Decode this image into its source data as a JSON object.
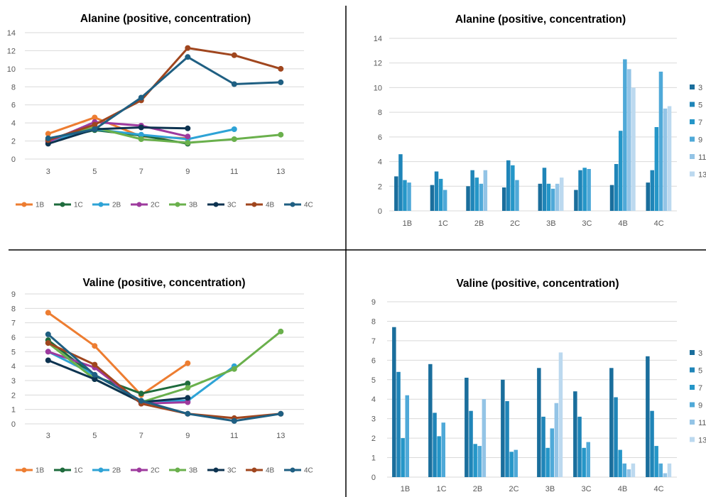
{
  "chart_data": [
    {
      "type": "line",
      "title": "Alanine (positive, concentration)",
      "x": [
        3,
        5,
        7,
        9,
        11,
        13
      ],
      "ylim": [
        0,
        14
      ],
      "yticks": [
        "0",
        "2",
        "4",
        "6",
        "8",
        "10",
        "12",
        "14"
      ],
      "grid": true,
      "legend_position": "bottom",
      "series": [
        {
          "name": "1B",
          "color": "#ED7D31",
          "values": [
            2.8,
            4.6,
            2.5,
            2.3,
            null,
            null
          ]
        },
        {
          "name": "1C",
          "color": "#1E6B3C",
          "values": [
            2.1,
            3.2,
            2.6,
            1.7,
            null,
            null
          ]
        },
        {
          "name": "2B",
          "color": "#2EA3D6",
          "values": [
            2.0,
            3.3,
            2.7,
            2.2,
            3.3,
            null
          ]
        },
        {
          "name": "2C",
          "color": "#9E3A9E",
          "values": [
            1.9,
            4.1,
            3.7,
            2.5,
            null,
            null
          ]
        },
        {
          "name": "3B",
          "color": "#6AB04C",
          "values": [
            2.2,
            3.5,
            2.2,
            1.8,
            2.2,
            2.7
          ]
        },
        {
          "name": "3C",
          "color": "#0D3350",
          "values": [
            1.7,
            3.3,
            3.5,
            3.4,
            null,
            null
          ]
        },
        {
          "name": "4B",
          "color": "#A0461E",
          "values": [
            2.1,
            3.8,
            6.5,
            12.3,
            11.5,
            10.0
          ]
        },
        {
          "name": "4C",
          "color": "#1F5F82",
          "values": [
            2.3,
            3.3,
            6.8,
            11.3,
            8.3,
            8.5
          ]
        }
      ]
    },
    {
      "type": "bar",
      "title": "Alanine (positive, concentration)",
      "categories": [
        "1B",
        "1C",
        "2B",
        "2C",
        "3B",
        "3C",
        "4B",
        "4C"
      ],
      "ylim": [
        0,
        14
      ],
      "yticks": [
        "0",
        "2",
        "4",
        "6",
        "8",
        "10",
        "12",
        "14"
      ],
      "grid": true,
      "legend_position": "right",
      "series": [
        {
          "name": "3",
          "color": "#1A6E9C",
          "values": [
            2.8,
            2.1,
            2.0,
            1.9,
            2.2,
            1.7,
            2.1,
            2.3
          ]
        },
        {
          "name": "5",
          "color": "#1F85B8",
          "values": [
            4.6,
            3.2,
            3.3,
            4.1,
            3.5,
            3.3,
            3.8,
            3.3
          ]
        },
        {
          "name": "7",
          "color": "#2596C8",
          "values": [
            2.5,
            2.6,
            2.7,
            3.7,
            2.2,
            3.5,
            6.5,
            6.8
          ]
        },
        {
          "name": "9",
          "color": "#4FA9D8",
          "values": [
            2.3,
            1.7,
            2.2,
            2.5,
            1.8,
            3.4,
            12.3,
            11.3
          ]
        },
        {
          "name": "11",
          "color": "#93C4E6",
          "values": [
            null,
            null,
            3.3,
            null,
            2.2,
            null,
            11.5,
            8.3
          ]
        },
        {
          "name": "13",
          "color": "#BCD9EF",
          "values": [
            null,
            null,
            null,
            null,
            2.7,
            null,
            10.0,
            8.5
          ]
        }
      ]
    },
    {
      "type": "line",
      "title": "Valine (positive, concentration)",
      "x": [
        3,
        5,
        7,
        9,
        11,
        13
      ],
      "ylim": [
        0,
        9
      ],
      "yticks": [
        "0",
        "1",
        "2",
        "3",
        "4",
        "5",
        "6",
        "7",
        "8",
        "9"
      ],
      "grid": true,
      "legend_position": "bottom",
      "series": [
        {
          "name": "1B",
          "color": "#ED7D31",
          "values": [
            7.7,
            5.4,
            2.0,
            4.2,
            null,
            null
          ]
        },
        {
          "name": "1C",
          "color": "#1E6B3C",
          "values": [
            5.8,
            3.3,
            2.1,
            2.8,
            null,
            null
          ]
        },
        {
          "name": "2B",
          "color": "#2EA3D6",
          "values": [
            5.0,
            3.4,
            1.6,
            1.6,
            4.0,
            null
          ]
        },
        {
          "name": "2C",
          "color": "#9E3A9E",
          "values": [
            5.0,
            3.9,
            1.4,
            1.5,
            null,
            null
          ]
        },
        {
          "name": "3B",
          "color": "#6AB04C",
          "values": [
            5.6,
            3.1,
            1.5,
            2.5,
            3.8,
            6.4
          ]
        },
        {
          "name": "3C",
          "color": "#0D3350",
          "values": [
            4.4,
            3.1,
            1.5,
            1.8,
            null,
            null
          ]
        },
        {
          "name": "4B",
          "color": "#A0461E",
          "values": [
            5.6,
            4.1,
            1.4,
            0.7,
            0.4,
            0.7
          ]
        },
        {
          "name": "4C",
          "color": "#1F5F82",
          "values": [
            6.2,
            3.4,
            1.6,
            0.7,
            0.2,
            0.7
          ]
        }
      ]
    },
    {
      "type": "bar",
      "title": "Valine (positive, concentration)",
      "categories": [
        "1B",
        "1C",
        "2B",
        "2C",
        "3B",
        "3C",
        "4B",
        "4C"
      ],
      "ylim": [
        0,
        9
      ],
      "yticks": [
        "0",
        "1",
        "2",
        "3",
        "4",
        "5",
        "6",
        "7",
        "8",
        "9"
      ],
      "grid": true,
      "legend_position": "right",
      "series": [
        {
          "name": "3",
          "color": "#1A6E9C",
          "values": [
            7.7,
            5.8,
            5.1,
            5.0,
            5.6,
            4.4,
            5.6,
            6.2
          ]
        },
        {
          "name": "5",
          "color": "#1F85B8",
          "values": [
            5.4,
            3.3,
            3.4,
            3.9,
            3.1,
            3.1,
            4.1,
            3.4
          ]
        },
        {
          "name": "7",
          "color": "#2596C8",
          "values": [
            2.0,
            2.1,
            1.7,
            1.3,
            1.5,
            1.5,
            1.4,
            1.6
          ]
        },
        {
          "name": "9",
          "color": "#4FA9D8",
          "values": [
            4.2,
            2.8,
            1.6,
            1.4,
            2.5,
            1.8,
            0.7,
            0.7
          ]
        },
        {
          "name": "11",
          "color": "#93C4E6",
          "values": [
            null,
            null,
            4.0,
            null,
            3.8,
            null,
            0.4,
            0.2
          ]
        },
        {
          "name": "13",
          "color": "#BCD9EF",
          "values": [
            null,
            null,
            null,
            null,
            6.4,
            null,
            0.7,
            0.7
          ]
        }
      ]
    }
  ]
}
